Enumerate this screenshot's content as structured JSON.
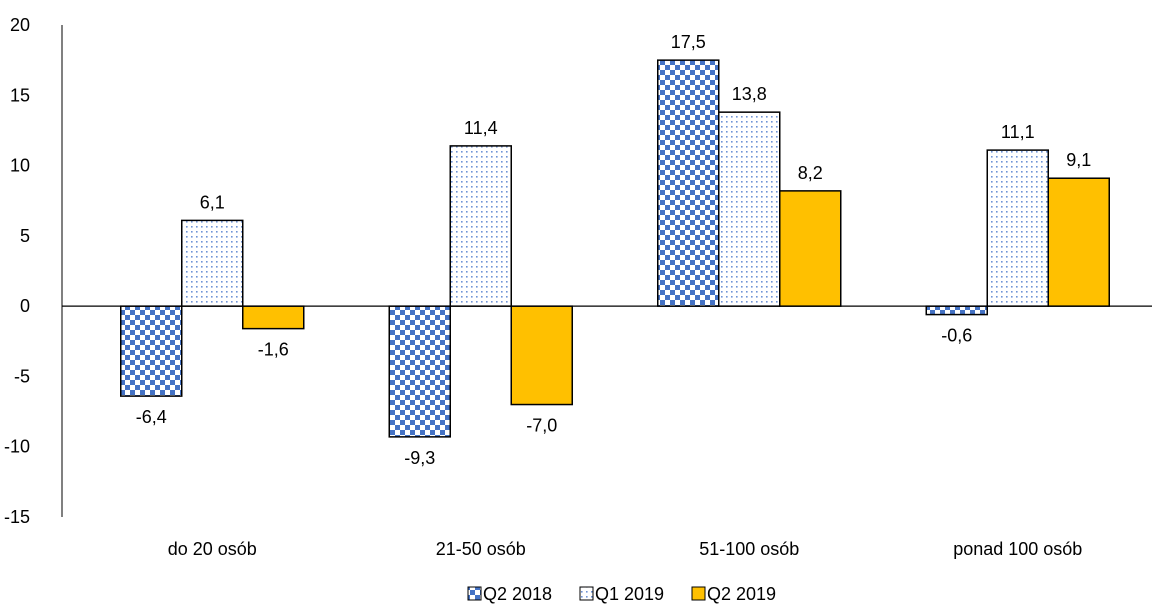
{
  "chart_data": {
    "type": "bar",
    "categories": [
      "do 20 osób",
      "21-50 osób",
      "51-100 osób",
      "ponad 100 osób"
    ],
    "series": [
      {
        "name": "Q2 2018",
        "values": [
          -6.4,
          -9.3,
          17.5,
          -0.6
        ],
        "labels": [
          "-6,4",
          "-9,3",
          "17,5",
          "-0,6"
        ],
        "color": "#4472C4",
        "pattern": "checker"
      },
      {
        "name": "Q1 2019",
        "values": [
          6.1,
          11.4,
          13.8,
          11.1
        ],
        "labels": [
          "6,1",
          "11,4",
          "13,8",
          "11,1"
        ],
        "color": "#4472C4",
        "pattern": "dots"
      },
      {
        "name": "Q2 2019",
        "values": [
          -1.6,
          -7.0,
          8.2,
          9.1
        ],
        "labels": [
          "-1,6",
          "-7,0",
          "8,2",
          "9,1"
        ],
        "color": "#FFC000",
        "pattern": "solid"
      }
    ],
    "yticks": [
      20,
      15,
      10,
      5,
      0,
      -5,
      -10,
      -15
    ],
    "ylim": [
      -15,
      20
    ],
    "legend_position": "bottom",
    "grid": false
  }
}
